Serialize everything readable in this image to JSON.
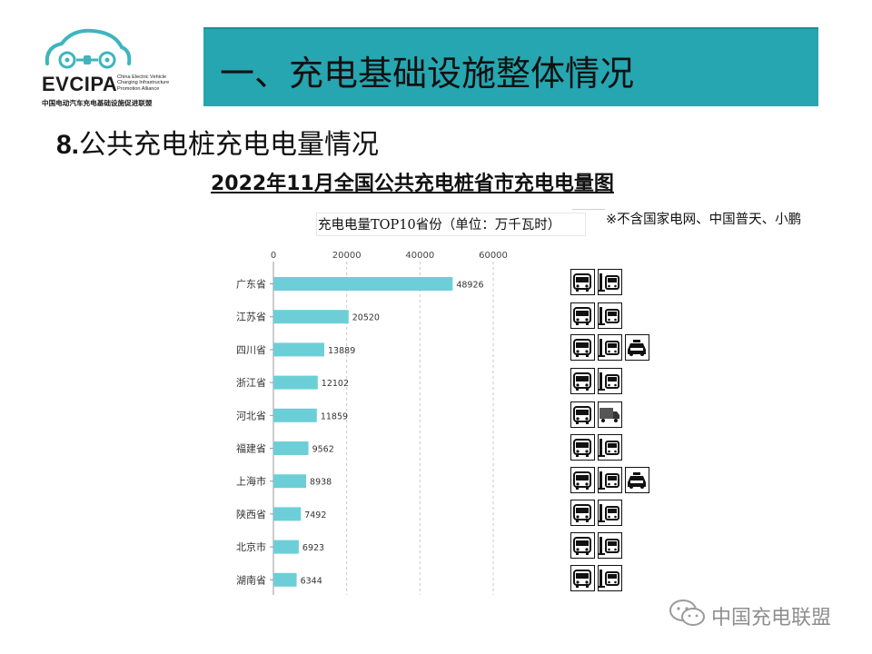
{
  "logo": {
    "wordmark": "EVCIPA",
    "tagline": "China Electric Vehicle Charging Infrastructure Promotion Alliance",
    "cn_name": "中国电动汽车充电基础设施促进联盟"
  },
  "header": {
    "title": "一、充电基础设施整体情况"
  },
  "section": {
    "number": "8.",
    "title": "公共充电桩充电电量情况"
  },
  "chart_title": "2022年11月全国公共充电桩省市充电电量图",
  "note": "※不含国家电网、中国普天、小鹏",
  "chart_data": {
    "type": "bar",
    "orientation": "horizontal",
    "title": "充电电量TOP10省份（单位：万千瓦时）",
    "categories": [
      "广东省",
      "江苏省",
      "四川省",
      "浙江省",
      "河北省",
      "福建省",
      "上海市",
      "陕西省",
      "北京市",
      "湖南省"
    ],
    "values": [
      48926,
      20520,
      13889,
      12102,
      11859,
      9562,
      8938,
      7492,
      6923,
      6344
    ],
    "ticks": [
      0,
      20000,
      40000,
      60000
    ],
    "xlim": [
      0,
      60000
    ],
    "grid": "dashed vertical",
    "bar_color": "#6ccfd8"
  },
  "vehicle_icons": [
    [
      "bus",
      "station-bus"
    ],
    [
      "bus",
      "station-bus"
    ],
    [
      "bus",
      "station-bus",
      "taxi"
    ],
    [
      "bus",
      "station-bus"
    ],
    [
      "bus",
      "truck"
    ],
    [
      "bus",
      "station-bus"
    ],
    [
      "bus",
      "station-bus",
      "taxi"
    ],
    [
      "bus",
      "station-bus"
    ],
    [
      "bus",
      "station-bus"
    ],
    [
      "bus",
      "station-bus"
    ]
  ],
  "watermark": {
    "text": "中国充电联盟",
    "icon": "wechat-icon"
  }
}
